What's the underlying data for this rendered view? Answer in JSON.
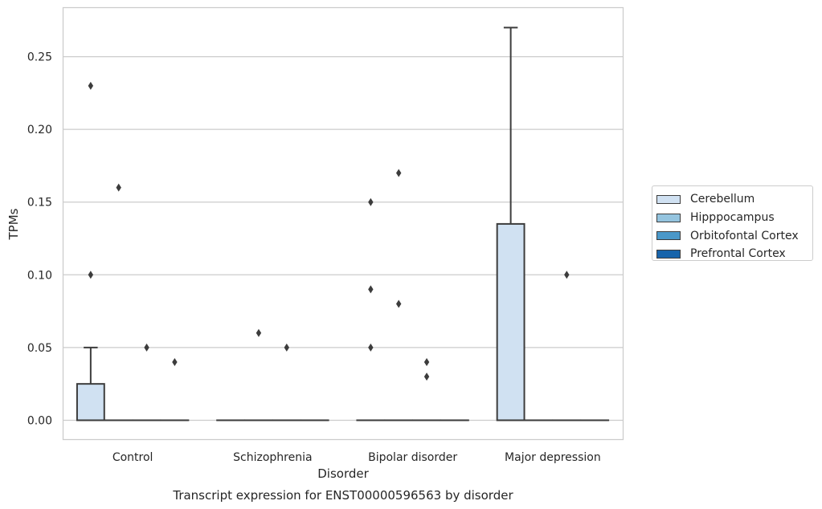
{
  "chart_data": {
    "type": "boxplot",
    "title": "Transcript expression for ENST00000596563 by disorder",
    "xlabel": "Disorder",
    "ylabel": "TPMs",
    "ylim": [
      -0.013,
      0.284
    ],
    "yticks": [
      "0.00",
      "0.05",
      "0.10",
      "0.15",
      "0.20",
      "0.25"
    ],
    "grid": true,
    "legend_position": "right",
    "categories": [
      "Control",
      "Schizophrenia",
      "Bipolar disorder",
      "Major depression"
    ],
    "series": [
      {
        "name": "Cerebellum",
        "color": "#d0e1f2",
        "boxes": [
          {
            "q1": 0.0,
            "median": 0.0,
            "q3": 0.025,
            "whisker_low": 0.0,
            "whisker_high": 0.05,
            "outliers": [
              0.23,
              0.1
            ]
          },
          {
            "q1": 0.0,
            "median": 0.0,
            "q3": 0.0,
            "whisker_low": 0.0,
            "whisker_high": 0.0,
            "outliers": []
          },
          {
            "q1": 0.0,
            "median": 0.0,
            "q3": 0.0,
            "whisker_low": 0.0,
            "whisker_high": 0.0,
            "outliers": [
              0.15,
              0.09,
              0.05
            ]
          },
          {
            "q1": 0.0,
            "median": 0.0,
            "q3": 0.135,
            "whisker_low": 0.0,
            "whisker_high": 0.27,
            "outliers": []
          }
        ]
      },
      {
        "name": "Hipppocampus",
        "color": "#94c4df",
        "boxes": [
          {
            "q1": 0.0,
            "median": 0.0,
            "q3": 0.0,
            "whisker_low": 0.0,
            "whisker_high": 0.0,
            "outliers": [
              0.16
            ]
          },
          {
            "q1": 0.0,
            "median": 0.0,
            "q3": 0.0,
            "whisker_low": 0.0,
            "whisker_high": 0.0,
            "outliers": [
              0.06
            ]
          },
          {
            "q1": 0.0,
            "median": 0.0,
            "q3": 0.0,
            "whisker_low": 0.0,
            "whisker_high": 0.0,
            "outliers": [
              0.17,
              0.08
            ]
          },
          {
            "q1": 0.0,
            "median": 0.0,
            "q3": 0.0,
            "whisker_low": 0.0,
            "whisker_high": 0.0,
            "outliers": []
          }
        ]
      },
      {
        "name": "Orbitofontal Cortex",
        "color": "#4a98c9",
        "boxes": [
          {
            "q1": 0.0,
            "median": 0.0,
            "q3": 0.0,
            "whisker_low": 0.0,
            "whisker_high": 0.0,
            "outliers": [
              0.05
            ]
          },
          {
            "q1": 0.0,
            "median": 0.0,
            "q3": 0.0,
            "whisker_low": 0.0,
            "whisker_high": 0.0,
            "outliers": [
              0.05
            ]
          },
          {
            "q1": 0.0,
            "median": 0.0,
            "q3": 0.0,
            "whisker_low": 0.0,
            "whisker_high": 0.0,
            "outliers": [
              0.04,
              0.03
            ]
          },
          {
            "q1": 0.0,
            "median": 0.0,
            "q3": 0.0,
            "whisker_low": 0.0,
            "whisker_high": 0.0,
            "outliers": [
              0.1
            ]
          }
        ]
      },
      {
        "name": "Prefrontal Cortex",
        "color": "#1764ab",
        "boxes": [
          {
            "q1": 0.0,
            "median": 0.0,
            "q3": 0.0,
            "whisker_low": 0.0,
            "whisker_high": 0.0,
            "outliers": [
              0.04
            ]
          },
          {
            "q1": 0.0,
            "median": 0.0,
            "q3": 0.0,
            "whisker_low": 0.0,
            "whisker_high": 0.0,
            "outliers": []
          },
          {
            "q1": 0.0,
            "median": 0.0,
            "q3": 0.0,
            "whisker_low": 0.0,
            "whisker_high": 0.0,
            "outliers": []
          },
          {
            "q1": 0.0,
            "median": 0.0,
            "q3": 0.0,
            "whisker_low": 0.0,
            "whisker_high": 0.0,
            "outliers": []
          }
        ]
      }
    ]
  }
}
